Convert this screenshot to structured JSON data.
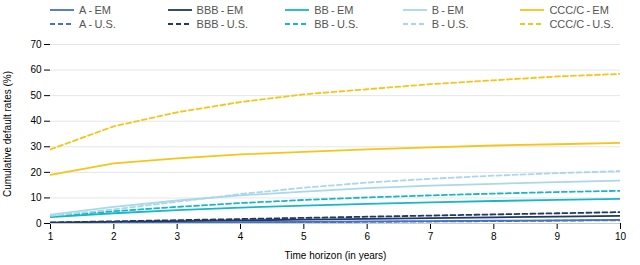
{
  "chart_data": {
    "type": "line",
    "xlabel": "Time horizon (in years)",
    "ylabel": "Cumulative default rates (%)",
    "x": [
      1,
      2,
      3,
      4,
      5,
      6,
      7,
      8,
      9,
      10
    ],
    "series": [
      {
        "name": "A - EM",
        "color": "#4472c4",
        "line_style": "solid",
        "values": [
          0.1,
          0.2,
          0.35,
          0.5,
          0.65,
          0.8,
          0.95,
          1.1,
          1.25,
          1.4
        ]
      },
      {
        "name": "BBB - EM",
        "color": "#1f3864",
        "line_style": "solid",
        "values": [
          0.3,
          0.6,
          0.9,
          1.2,
          1.5,
          1.8,
          2.1,
          2.4,
          2.7,
          3.0
        ]
      },
      {
        "name": "BB - EM",
        "color": "#17b7c7",
        "line_style": "solid",
        "values": [
          2.5,
          4.0,
          5.2,
          6.2,
          7.0,
          7.7,
          8.3,
          8.8,
          9.2,
          9.6
        ]
      },
      {
        "name": "B - EM",
        "color": "#a8d8ea",
        "line_style": "solid",
        "values": [
          3.5,
          6.5,
          9.0,
          11.0,
          12.5,
          13.8,
          14.8,
          15.5,
          16.2,
          16.8
        ]
      },
      {
        "name": "CCC/C - EM",
        "color": "#f5c518",
        "line_style": "solid",
        "values": [
          19.0,
          23.5,
          25.5,
          27.0,
          28.0,
          29.0,
          29.8,
          30.5,
          31.0,
          31.5
        ]
      },
      {
        "name": "A - U.S.",
        "color": "#4472c4",
        "line_style": "dashed",
        "values": [
          0.05,
          0.12,
          0.22,
          0.35,
          0.48,
          0.62,
          0.77,
          0.93,
          1.1,
          1.28
        ]
      },
      {
        "name": "BBB - U.S.",
        "color": "#1f3864",
        "line_style": "dashed",
        "values": [
          0.4,
          0.85,
          1.3,
          1.75,
          2.2,
          2.65,
          3.1,
          3.55,
          4.0,
          4.45
        ]
      },
      {
        "name": "BB - U.S.",
        "color": "#17b7c7",
        "line_style": "dashed",
        "values": [
          2.8,
          4.8,
          6.5,
          8.0,
          9.2,
          10.2,
          11.0,
          11.7,
          12.3,
          12.8
        ]
      },
      {
        "name": "B - U.S.",
        "color": "#a8d8ea",
        "line_style": "dashed",
        "values": [
          3.0,
          5.5,
          8.5,
          11.5,
          14.0,
          16.0,
          17.5,
          18.7,
          19.7,
          20.5
        ]
      },
      {
        "name": "CCC/C - U.S.",
        "color": "#f5c518",
        "line_style": "dashed",
        "values": [
          29.0,
          38.0,
          43.5,
          47.5,
          50.5,
          52.5,
          54.5,
          56.0,
          57.5,
          58.5
        ]
      }
    ],
    "xlim": [
      1,
      10
    ],
    "ylim": [
      0,
      70
    ],
    "xticks": [
      1,
      2,
      3,
      4,
      5,
      6,
      7,
      8,
      9,
      10
    ],
    "yticks": [
      0,
      10,
      20,
      30,
      40,
      50,
      60,
      70
    ],
    "grid": true,
    "legend": "top"
  }
}
